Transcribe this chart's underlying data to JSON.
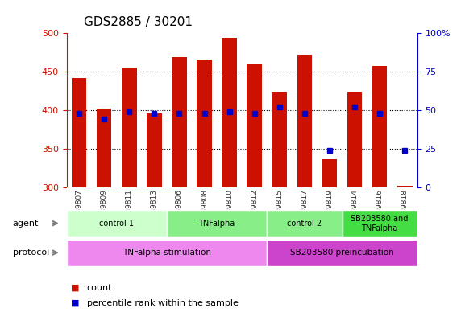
{
  "title": "GDS2885 / 30201",
  "samples": [
    "GSM189807",
    "GSM189809",
    "GSM189811",
    "GSM189813",
    "GSM189806",
    "GSM189808",
    "GSM189810",
    "GSM189812",
    "GSM189815",
    "GSM189817",
    "GSM189819",
    "GSM189814",
    "GSM189816",
    "GSM189818"
  ],
  "counts": [
    441,
    402,
    455,
    396,
    468,
    465,
    493,
    459,
    424,
    472,
    336,
    424,
    457,
    302
  ],
  "percentiles": [
    48,
    44,
    49,
    48,
    48,
    48,
    49,
    48,
    52,
    48,
    24,
    52,
    48,
    24
  ],
  "ymin": 300,
  "ymax": 500,
  "yticks": [
    300,
    350,
    400,
    450,
    500
  ],
  "right_yticks": [
    0,
    25,
    50,
    75,
    100
  ],
  "right_yticklabels": [
    "0",
    "25",
    "50",
    "75",
    "100%"
  ],
  "bar_color": "#cc1100",
  "dot_color": "#0000cc",
  "agent_groups": [
    {
      "label": "control 1",
      "start": 0,
      "end": 3,
      "color": "#ccffcc"
    },
    {
      "label": "TNFalpha",
      "start": 4,
      "end": 7,
      "color": "#88ee88"
    },
    {
      "label": "control 2",
      "start": 8,
      "end": 10,
      "color": "#88ee88"
    },
    {
      "label": "SB203580 and\nTNFalpha",
      "start": 11,
      "end": 13,
      "color": "#44dd44"
    }
  ],
  "protocol_groups": [
    {
      "label": "TNFalpha stimulation",
      "start": 0,
      "end": 7,
      "color": "#ee88ee"
    },
    {
      "label": "SB203580 preincubation",
      "start": 8,
      "end": 13,
      "color": "#cc44cc"
    }
  ],
  "left_axis_color": "#cc1100",
  "right_axis_color": "#0000cc",
  "grid_dotted_at": [
    350,
    400,
    450
  ]
}
